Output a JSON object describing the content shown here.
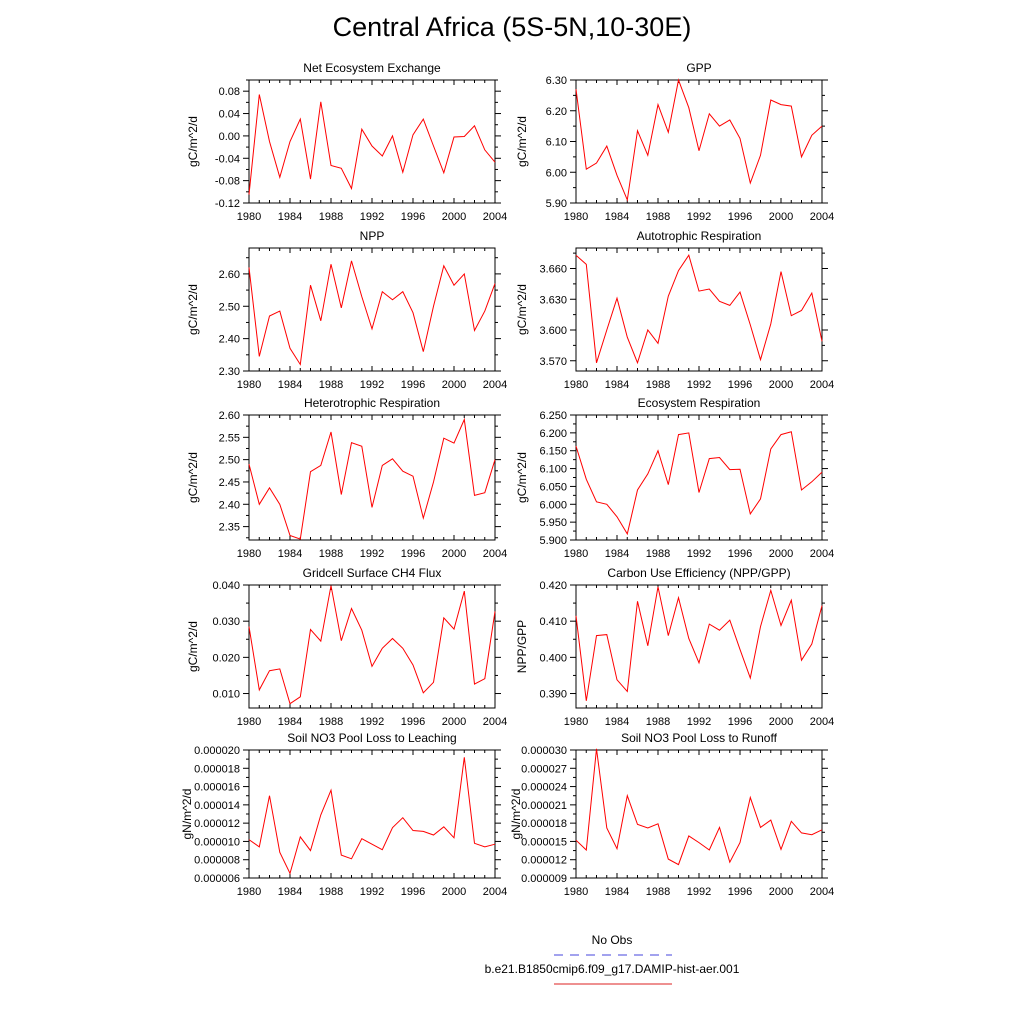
{
  "title": "Central Africa (5S-5N,10-30E)",
  "legend": [
    {
      "label": "No Obs",
      "color": "#4444dd",
      "style": "dashed"
    },
    {
      "label": "b.e21.B1850cmip6.f09_g17.DAMIP-hist-aer.001",
      "color": "#dd2222",
      "style": "solid"
    }
  ],
  "chart_data": [
    {
      "type": "line",
      "title": "Net Ecosystem Exchange",
      "ylabel": "gC/m^2/d",
      "xlim": [
        1980,
        2004
      ],
      "ylim": [
        -0.12,
        0.1
      ],
      "yticks": [
        -0.12,
        -0.08,
        -0.04,
        0.0,
        0.04,
        0.08
      ],
      "ytick_labels": [
        "-0.12",
        "-0.08",
        "-0.04",
        "0.00",
        "0.04",
        "0.08"
      ],
      "xticks": [
        1980,
        1984,
        1988,
        1992,
        1996,
        2000,
        2004
      ],
      "x": [
        1980,
        1981,
        1982,
        1983,
        1984,
        1985,
        1986,
        1987,
        1988,
        1989,
        1990,
        1991,
        1992,
        1993,
        1994,
        1995,
        1996,
        1997,
        1998,
        1999,
        2000,
        2001,
        2002,
        2003,
        2004
      ],
      "series": [
        {
          "color": "#ff0000",
          "values": [
            -0.105,
            0.074,
            -0.01,
            -0.074,
            -0.01,
            0.03,
            -0.077,
            0.061,
            -0.053,
            -0.058,
            -0.094,
            0.012,
            -0.018,
            -0.036,
            0.0,
            -0.065,
            0.002,
            0.03,
            -0.018,
            -0.066,
            -0.002,
            -0.001,
            0.018,
            -0.025,
            -0.047
          ]
        }
      ]
    },
    {
      "type": "line",
      "title": "GPP",
      "ylabel": "gC/m^2/d",
      "xlim": [
        1980,
        2004
      ],
      "ylim": [
        5.9,
        6.3
      ],
      "yticks": [
        5.9,
        6.0,
        6.1,
        6.2,
        6.3
      ],
      "ytick_labels": [
        "5.90",
        "6.00",
        "6.10",
        "6.20",
        "6.30"
      ],
      "xticks": [
        1980,
        1984,
        1988,
        1992,
        1996,
        2000,
        2004
      ],
      "x": [
        1980,
        1981,
        1982,
        1983,
        1984,
        1985,
        1986,
        1987,
        1988,
        1989,
        1990,
        1991,
        1992,
        1993,
        1994,
        1995,
        1996,
        1997,
        1998,
        1999,
        2000,
        2001,
        2002,
        2003,
        2004
      ],
      "series": [
        {
          "color": "#ff0000",
          "values": [
            6.27,
            6.01,
            6.03,
            6.085,
            5.99,
            5.91,
            6.135,
            6.055,
            6.22,
            6.13,
            6.3,
            6.21,
            6.07,
            6.19,
            6.15,
            6.17,
            6.11,
            5.965,
            6.055,
            6.235,
            6.22,
            6.215,
            6.05,
            6.12,
            6.15
          ]
        }
      ]
    },
    {
      "type": "line",
      "title": "NPP",
      "ylabel": "gC/m^2/d",
      "xlim": [
        1980,
        2004
      ],
      "ylim": [
        2.3,
        2.68
      ],
      "yticks": [
        2.3,
        2.4,
        2.5,
        2.6
      ],
      "ytick_labels": [
        "2.30",
        "2.40",
        "2.50",
        "2.60"
      ],
      "xticks": [
        1980,
        1984,
        1988,
        1992,
        1996,
        2000,
        2004
      ],
      "x": [
        1980,
        1981,
        1982,
        1983,
        1984,
        1985,
        1986,
        1987,
        1988,
        1989,
        1990,
        1991,
        1992,
        1993,
        1994,
        1995,
        1996,
        1997,
        1998,
        1999,
        2000,
        2001,
        2002,
        2003,
        2004
      ],
      "series": [
        {
          "color": "#ff0000",
          "values": [
            2.62,
            2.345,
            2.47,
            2.485,
            2.37,
            2.32,
            2.565,
            2.455,
            2.63,
            2.495,
            2.64,
            2.53,
            2.43,
            2.545,
            2.52,
            2.545,
            2.48,
            2.36,
            2.5,
            2.625,
            2.565,
            2.6,
            2.425,
            2.485,
            2.57
          ]
        }
      ]
    },
    {
      "type": "line",
      "title": "Autotrophic Respiration",
      "ylabel": "gC/m^2/d",
      "xlim": [
        1980,
        2004
      ],
      "ylim": [
        3.56,
        3.68
      ],
      "yticks": [
        3.57,
        3.6,
        3.63,
        3.66
      ],
      "ytick_labels": [
        "3.570",
        "3.600",
        "3.630",
        "3.660"
      ],
      "xticks": [
        1980,
        1984,
        1988,
        1992,
        1996,
        2000,
        2004
      ],
      "x": [
        1980,
        1981,
        1982,
        1983,
        1984,
        1985,
        1986,
        1987,
        1988,
        1989,
        1990,
        1991,
        1992,
        1993,
        1994,
        1995,
        1996,
        1997,
        1998,
        1999,
        2000,
        2001,
        2002,
        2003,
        2004
      ],
      "series": [
        {
          "color": "#ff0000",
          "values": [
            3.673,
            3.664,
            3.568,
            3.6,
            3.631,
            3.593,
            3.568,
            3.6,
            3.587,
            3.633,
            3.658,
            3.673,
            3.638,
            3.64,
            3.628,
            3.624,
            3.637,
            3.605,
            3.571,
            3.606,
            3.657,
            3.614,
            3.619,
            3.636,
            3.589
          ]
        }
      ]
    },
    {
      "type": "line",
      "title": "Heterotrophic Respiration",
      "ylabel": "gC/m^2/d",
      "xlim": [
        1980,
        2004
      ],
      "ylim": [
        2.32,
        2.6
      ],
      "yticks": [
        2.35,
        2.4,
        2.45,
        2.5,
        2.55,
        2.6
      ],
      "ytick_labels": [
        "2.35",
        "2.40",
        "2.45",
        "2.50",
        "2.55",
        "2.60"
      ],
      "xticks": [
        1980,
        1984,
        1988,
        1992,
        1996,
        2000,
        2004
      ],
      "x": [
        1980,
        1981,
        1982,
        1983,
        1984,
        1985,
        1986,
        1987,
        1988,
        1989,
        1990,
        1991,
        1992,
        1993,
        1994,
        1995,
        1996,
        1997,
        1998,
        1999,
        2000,
        2001,
        2002,
        2003,
        2004
      ],
      "series": [
        {
          "color": "#ff0000",
          "values": [
            2.49,
            2.4,
            2.437,
            2.4,
            2.33,
            2.322,
            2.473,
            2.487,
            2.562,
            2.422,
            2.538,
            2.53,
            2.393,
            2.487,
            2.502,
            2.474,
            2.463,
            2.369,
            2.45,
            2.548,
            2.537,
            2.59,
            2.42,
            2.426,
            2.5
          ]
        }
      ]
    },
    {
      "type": "line",
      "title": "Ecosystem Respiration",
      "ylabel": "gC/m^2/d",
      "xlim": [
        1980,
        2004
      ],
      "ylim": [
        5.9,
        6.25
      ],
      "yticks": [
        5.9,
        5.95,
        6.0,
        6.05,
        6.1,
        6.15,
        6.2,
        6.25
      ],
      "ytick_labels": [
        "5.900",
        "5.950",
        "6.000",
        "6.050",
        "6.100",
        "6.150",
        "6.200",
        "6.250"
      ],
      "xticks": [
        1980,
        1984,
        1988,
        1992,
        1996,
        2000,
        2004
      ],
      "x": [
        1980,
        1981,
        1982,
        1983,
        1984,
        1985,
        1986,
        1987,
        1988,
        1989,
        1990,
        1991,
        1992,
        1993,
        1994,
        1995,
        1996,
        1997,
        1998,
        1999,
        2000,
        2001,
        2002,
        2003,
        2004
      ],
      "series": [
        {
          "color": "#ff0000",
          "values": [
            6.163,
            6.07,
            6.007,
            6.0,
            5.965,
            5.917,
            6.04,
            6.085,
            6.15,
            6.055,
            6.195,
            6.2,
            6.033,
            6.128,
            6.131,
            6.097,
            6.098,
            5.973,
            6.015,
            6.155,
            6.195,
            6.203,
            6.04,
            6.063,
            6.09
          ]
        }
      ]
    },
    {
      "type": "line",
      "title": "Gridcell Surface CH4 Flux",
      "ylabel": "gC/m^2/d",
      "xlim": [
        1980,
        2004
      ],
      "ylim": [
        0.006,
        0.04
      ],
      "yticks": [
        0.01,
        0.02,
        0.03,
        0.04
      ],
      "ytick_labels": [
        "0.010",
        "0.020",
        "0.030",
        "0.040"
      ],
      "xticks": [
        1980,
        1984,
        1988,
        1992,
        1996,
        2000,
        2004
      ],
      "x": [
        1980,
        1981,
        1982,
        1983,
        1984,
        1985,
        1986,
        1987,
        1988,
        1989,
        1990,
        1991,
        1992,
        1993,
        1994,
        1995,
        1996,
        1997,
        1998,
        1999,
        2000,
        2001,
        2002,
        2003,
        2004
      ],
      "series": [
        {
          "color": "#ff0000",
          "values": [
            0.0285,
            0.011,
            0.0163,
            0.0168,
            0.0072,
            0.0091,
            0.0277,
            0.0245,
            0.0398,
            0.0246,
            0.0335,
            0.0275,
            0.0175,
            0.0225,
            0.0252,
            0.0225,
            0.0179,
            0.0102,
            0.0131,
            0.0309,
            0.0278,
            0.0383,
            0.0126,
            0.0141,
            0.0327
          ]
        }
      ]
    },
    {
      "type": "line",
      "title": "Carbon Use Efficiency (NPP/GPP)",
      "ylabel": "NPP/GPP",
      "xlim": [
        1980,
        2004
      ],
      "ylim": [
        0.386,
        0.42
      ],
      "yticks": [
        0.39,
        0.4,
        0.41,
        0.42
      ],
      "ytick_labels": [
        "0.390",
        "0.400",
        "0.410",
        "0.420"
      ],
      "xticks": [
        1980,
        1984,
        1988,
        1992,
        1996,
        2000,
        2004
      ],
      "x": [
        1980,
        1981,
        1982,
        1983,
        1984,
        1985,
        1986,
        1987,
        1988,
        1989,
        1990,
        1991,
        1992,
        1993,
        1994,
        1995,
        1996,
        1997,
        1998,
        1999,
        2000,
        2001,
        2002,
        2003,
        2004
      ],
      "series": [
        {
          "color": "#ff0000",
          "values": [
            0.4115,
            0.388,
            0.406,
            0.4063,
            0.3938,
            0.3906,
            0.4155,
            0.4032,
            0.4195,
            0.406,
            0.4165,
            0.4052,
            0.3985,
            0.4092,
            0.4075,
            0.4103,
            0.4022,
            0.3943,
            0.4085,
            0.4185,
            0.4088,
            0.4158,
            0.3992,
            0.4037,
            0.4143
          ]
        }
      ]
    },
    {
      "type": "line",
      "title": "Soil NO3 Pool Loss to Leaching",
      "ylabel": "gN/m^2/d",
      "xlim": [
        1980,
        2004
      ],
      "ylim": [
        6e-06,
        2e-05
      ],
      "yticks": [
        6e-06,
        8e-06,
        1e-05,
        1.2e-05,
        1.4e-05,
        1.6e-05,
        1.8e-05,
        2e-05
      ],
      "ytick_labels": [
        "0.000006",
        "0.000008",
        "0.000010",
        "0.000012",
        "0.000014",
        "0.000016",
        "0.000018",
        "0.000020"
      ],
      "xticks": [
        1980,
        1984,
        1988,
        1992,
        1996,
        2000,
        2004
      ],
      "x": [
        1980,
        1981,
        1982,
        1983,
        1984,
        1985,
        1986,
        1987,
        1988,
        1989,
        1990,
        1991,
        1992,
        1993,
        1994,
        1995,
        1996,
        1997,
        1998,
        1999,
        2000,
        2001,
        2002,
        2003,
        2004
      ],
      "series": [
        {
          "color": "#ff0000",
          "values": [
            1.02e-05,
            9.4e-06,
            1.5e-05,
            8.8e-06,
            6.5e-06,
            1.05e-05,
            9e-06,
            1.29e-05,
            1.56e-05,
            8.5e-06,
            8.1e-06,
            1.03e-05,
            9.7e-06,
            9.1e-06,
            1.15e-05,
            1.26e-05,
            1.12e-05,
            1.11e-05,
            1.07e-05,
            1.16e-05,
            1.04e-05,
            1.92e-05,
            9.8e-06,
            9.4e-06,
            9.7e-06
          ]
        }
      ]
    },
    {
      "type": "line",
      "title": "Soil NO3 Pool Loss to Runoff",
      "ylabel": "gN/m^2/d",
      "xlim": [
        1980,
        2004
      ],
      "ylim": [
        9e-06,
        3e-05
      ],
      "yticks": [
        9e-06,
        1.2e-05,
        1.5e-05,
        1.8e-05,
        2.1e-05,
        2.4e-05,
        2.7e-05,
        3e-05
      ],
      "ytick_labels": [
        "0.000009",
        "0.000012",
        "0.000015",
        "0.000018",
        "0.000021",
        "0.000024",
        "0.000027",
        "0.000030"
      ],
      "xticks": [
        1980,
        1984,
        1988,
        1992,
        1996,
        2000,
        2004
      ],
      "x": [
        1980,
        1981,
        1982,
        1983,
        1984,
        1985,
        1986,
        1987,
        1988,
        1989,
        1990,
        1991,
        1992,
        1993,
        1994,
        1995,
        1996,
        1997,
        1998,
        1999,
        2000,
        2001,
        2002,
        2003,
        2004
      ],
      "series": [
        {
          "color": "#ff0000",
          "values": [
            1.52e-05,
            1.36e-05,
            3.02e-05,
            1.72e-05,
            1.38e-05,
            2.25e-05,
            1.78e-05,
            1.72e-05,
            1.79e-05,
            1.21e-05,
            1.12e-05,
            1.59e-05,
            1.48e-05,
            1.36e-05,
            1.73e-05,
            1.16e-05,
            1.48e-05,
            2.22e-05,
            1.73e-05,
            1.85e-05,
            1.37e-05,
            1.83e-05,
            1.64e-05,
            1.61e-05,
            1.69e-05
          ]
        }
      ]
    }
  ]
}
